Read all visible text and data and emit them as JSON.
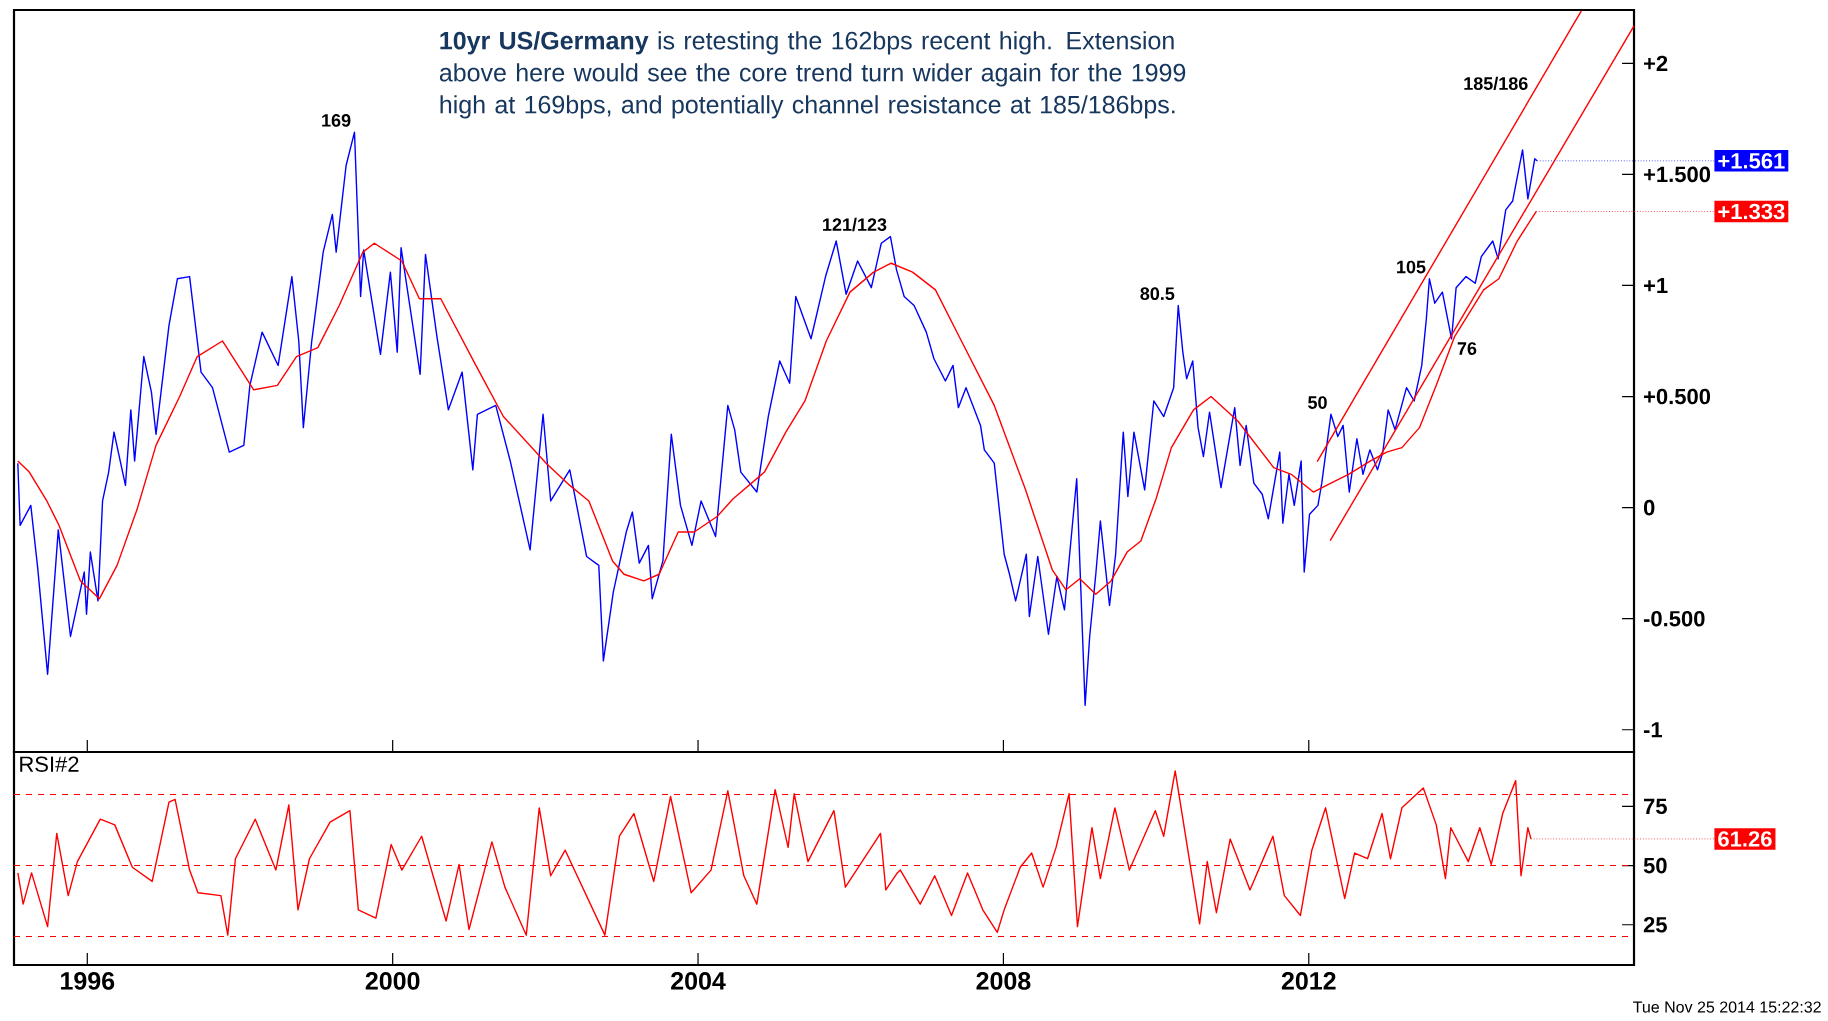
{
  "chart_data": [
    {
      "type": "line",
      "xlim": [
        1995.04,
        2016.26
      ],
      "ylim": [
        -1.1,
        2.24
      ],
      "xticks": [
        1996,
        2000,
        2004,
        2008,
        2012
      ],
      "yticks": [
        {
          "value": 2,
          "label": "+2"
        },
        {
          "value": 1.5,
          "label": "+1.500"
        },
        {
          "value": 1,
          "label": "+1"
        },
        {
          "value": 0.5,
          "label": "+0.500"
        },
        0,
        {
          "value": -0.5,
          "label": "-0.500"
        },
        -1
      ],
      "tick_labels": "y",
      "series": [
        {
          "color": "#0000ff",
          "x": [
            1995.09,
            1995.12,
            1995.26,
            1995.35,
            1995.48,
            1995.62,
            1995.78,
            1995.96,
            1995.99,
            1996.04,
            1996.14,
            1996.2,
            1996.28,
            1996.35,
            1996.5,
            1996.57,
            1996.62,
            1996.74,
            1996.84,
            1996.9,
            1997.07,
            1997.18,
            1997.34,
            1997.49,
            1997.64,
            1997.86,
            1998.05,
            1998.13,
            1998.29,
            1998.5,
            1998.68,
            1998.77,
            1998.83,
            1998.94,
            1999.09,
            1999.21,
            1999.26,
            1999.39,
            1999.5,
            1999.58,
            1999.62,
            1999.84,
            1999.97,
            2000.06,
            2000.11,
            2000.36,
            2000.43,
            2000.58,
            2000.73,
            2000.91,
            2001.05,
            2001.11,
            2001.35,
            2001.54,
            2001.8,
            2001.97,
            2002.07,
            2002.32,
            2002.54,
            2002.7,
            2002.76,
            2002.89,
            2003.06,
            2003.14,
            2003.23,
            2003.35,
            2003.4,
            2003.54,
            2003.65,
            2003.77,
            2003.92,
            2004.04,
            2004.23,
            2004.39,
            2004.48,
            2004.56,
            2004.77,
            2004.92,
            2005.07,
            2005.2,
            2005.28,
            2005.48,
            2005.67,
            2005.81,
            2005.94,
            2006.09,
            2006.27,
            2006.4,
            2006.52,
            2006.6,
            2006.7,
            2006.83,
            2006.99,
            2007.09,
            2007.24,
            2007.34,
            2007.41,
            2007.51,
            2007.7,
            2007.75,
            2007.88,
            2008.01,
            2008.08,
            2008.16,
            2008.3,
            2008.34,
            2008.45,
            2008.59,
            2008.7,
            2008.8,
            2008.96,
            2009.01,
            2009.07,
            2009.13,
            2009.21,
            2009.27,
            2009.39,
            2009.47,
            2009.57,
            2009.63,
            2009.71,
            2009.85,
            2009.97,
            2010.1,
            2010.23,
            2010.29,
            2010.35,
            2010.4,
            2010.48,
            2010.55,
            2010.62,
            2010.7,
            2010.85,
            2011.03,
            2011.1,
            2011.18,
            2011.28,
            2011.39,
            2011.47,
            2011.62,
            2011.66,
            2011.74,
            2011.81,
            2011.9,
            2011.94,
            2012.01,
            2012.12,
            2012.17,
            2012.29,
            2012.38,
            2012.45,
            2012.53,
            2012.63,
            2012.71,
            2012.8,
            2012.9,
            2012.97,
            2013.04,
            2013.13,
            2013.28,
            2013.38,
            2013.48,
            2013.54,
            2013.58,
            2013.65,
            2013.75,
            2013.87,
            2013.93,
            2014.06,
            2014.18,
            2014.26,
            2014.41,
            2014.48,
            2014.58,
            2014.67,
            2014.8,
            2014.87,
            2014.96,
            2014.99
          ],
          "values": [
            0.2,
            -0.08,
            0.01,
            -0.27,
            -0.75,
            -0.1,
            -0.58,
            -0.29,
            -0.48,
            -0.2,
            -0.42,
            0.03,
            0.16,
            0.34,
            0.1,
            0.44,
            0.21,
            0.68,
            0.52,
            0.33,
            0.82,
            1.03,
            1.04,
            0.61,
            0.54,
            0.25,
            0.28,
            0.55,
            0.79,
            0.64,
            1.04,
            0.75,
            0.36,
            0.75,
            1.15,
            1.32,
            1.15,
            1.54,
            1.69,
            0.95,
            1.16,
            0.69,
            1.06,
            0.7,
            1.17,
            0.6,
            1.14,
            0.77,
            0.44,
            0.61,
            0.17,
            0.42,
            0.46,
            0.21,
            -0.19,
            0.42,
            0.03,
            0.17,
            -0.22,
            -0.26,
            -0.69,
            -0.38,
            -0.11,
            -0.02,
            -0.25,
            -0.17,
            -0.41,
            -0.24,
            0.33,
            0.01,
            -0.17,
            0.03,
            -0.13,
            0.46,
            0.35,
            0.16,
            0.07,
            0.41,
            0.66,
            0.56,
            0.95,
            0.76,
            1.04,
            1.2,
            0.96,
            1.11,
            0.99,
            1.19,
            1.22,
            1.07,
            0.95,
            0.91,
            0.79,
            0.67,
            0.57,
            0.64,
            0.45,
            0.54,
            0.37,
            0.26,
            0.2,
            -0.21,
            -0.3,
            -0.42,
            -0.21,
            -0.49,
            -0.22,
            -0.57,
            -0.31,
            -0.46,
            0.13,
            -0.33,
            -0.89,
            -0.58,
            -0.3,
            -0.06,
            -0.44,
            -0.21,
            0.34,
            0.05,
            0.34,
            0.08,
            0.48,
            0.41,
            0.54,
            0.91,
            0.7,
            0.58,
            0.66,
            0.36,
            0.23,
            0.43,
            0.09,
            0.45,
            0.19,
            0.37,
            0.11,
            0.06,
            -0.05,
            0.25,
            -0.07,
            0.15,
            0.01,
            0.21,
            -0.29,
            -0.03,
            0.01,
            0.11,
            0.42,
            0.32,
            0.37,
            0.07,
            0.31,
            0.15,
            0.26,
            0.17,
            0.25,
            0.44,
            0.35,
            0.54,
            0.48,
            0.64,
            0.85,
            1.03,
            0.92,
            0.97,
            0.76,
            0.99,
            1.04,
            1.01,
            1.13,
            1.2,
            1.12,
            1.34,
            1.38,
            1.61,
            1.39,
            1.57,
            1.561
          ]
        },
        {
          "color": "#ff0000",
          "x": [
            1995.09,
            1995.24,
            1995.47,
            1995.63,
            1995.91,
            1996.16,
            1996.39,
            1996.65,
            1996.9,
            1997.21,
            1997.44,
            1997.77,
            1998.18,
            1998.49,
            1998.74,
            1999.02,
            1999.3,
            1999.61,
            1999.76,
            2000.12,
            2000.35,
            2000.63,
            2001.09,
            2001.45,
            2002.01,
            2002.32,
            2002.57,
            2002.88,
            2003.03,
            2003.29,
            2003.49,
            2003.74,
            2003.95,
            2004.25,
            2004.46,
            2004.87,
            2005.15,
            2005.4,
            2005.68,
            2005.99,
            2006.3,
            2006.53,
            2006.81,
            2007.11,
            2007.42,
            2007.88,
            2008.29,
            2008.64,
            2008.82,
            2009.0,
            2009.21,
            2009.41,
            2009.62,
            2009.8,
            2010.0,
            2010.2,
            2010.49,
            2010.72,
            2011.07,
            2011.54,
            2011.77,
            2012.06,
            2012.29,
            2012.52,
            2012.81,
            2013.02,
            2013.22,
            2013.45,
            2013.68,
            2013.91,
            2014.29,
            2014.49,
            2014.73,
            2014.98
          ],
          "values": [
            0.21,
            0.16,
            0.03,
            -0.08,
            -0.33,
            -0.41,
            -0.26,
            -0.01,
            0.28,
            0.5,
            0.68,
            0.75,
            0.53,
            0.55,
            0.68,
            0.72,
            0.91,
            1.15,
            1.19,
            1.11,
            0.94,
            0.94,
            0.64,
            0.41,
            0.2,
            0.1,
            0.03,
            -0.24,
            -0.3,
            -0.33,
            -0.3,
            -0.11,
            -0.11,
            -0.04,
            0.04,
            0.16,
            0.34,
            0.48,
            0.75,
            0.97,
            1.06,
            1.1,
            1.06,
            0.98,
            0.77,
            0.46,
            0.08,
            -0.28,
            -0.37,
            -0.32,
            -0.39,
            -0.33,
            -0.2,
            -0.15,
            0.04,
            0.27,
            0.44,
            0.5,
            0.39,
            0.18,
            0.15,
            0.07,
            0.11,
            0.15,
            0.21,
            0.25,
            0.27,
            0.36,
            0.56,
            0.77,
            0.98,
            1.03,
            1.2,
            1.333
          ]
        },
        {
          "color": "#ff0000",
          "x": [
            2012.11,
            2015.57
          ],
          "values": [
            0.207,
            2.236
          ]
        },
        {
          "color": "#ff0000",
          "x": [
            2012.28,
            2016.26
          ],
          "values": [
            -0.149,
            2.168
          ]
        }
      ],
      "annotations": [
        "**10yr US/Germany** is retesting the 162bps recent high.  Extension above here would see the core trend turn wider again for the 1999 high at 169bps, and potentially channel resistance at 185/186bps.",
        {
          "text": "169",
          "x": 1999.5,
          "y": 1.69
        },
        {
          "text": "121/123",
          "x": 2006.52,
          "y": 1.22
        },
        {
          "text": "80.5",
          "x": 2010.29,
          "y": 0.91
        },
        {
          "text": "50",
          "x": 2012.29,
          "y": 0.42
        },
        {
          "text": "105",
          "x": 2013.58,
          "y": 1.03
        },
        {
          "text": "76",
          "x": 2013.87,
          "y": 0.76
        },
        {
          "text": "185/186",
          "x": 2014.92,
          "y": 1.855
        },
        {
          "text": "+1.561",
          "x": 2014.99,
          "y": 1.561
        },
        {
          "text": "+1.333",
          "x": 2014.98,
          "y": 1.333
        }
      ]
    },
    {
      "type": "line",
      "title": "RSI#2",
      "xlim": [
        1995.04,
        2016.26
      ],
      "ylim": [
        8,
        98
      ],
      "xticks": [
        1996,
        2000,
        2004,
        2008,
        2012
      ],
      "yticks": [
        75,
        50,
        25
      ],
      "series": [
        {
          "color": "#ff0000",
          "x": [
            1995.09,
            1995.16,
            1995.27,
            1995.48,
            1995.6,
            1995.75,
            1995.87,
            1996.17,
            1996.36,
            1996.59,
            1996.85,
            1997.07,
            1997.15,
            1997.34,
            1997.45,
            1997.75,
            1997.84,
            1997.94,
            1998.2,
            1998.47,
            1998.64,
            1998.76,
            1998.91,
            1999.18,
            1999.44,
            1999.55,
            1999.78,
            1999.98,
            2000.12,
            2000.38,
            2000.7,
            2000.87,
            2001.0,
            2001.3,
            2001.47,
            2001.75,
            2001.92,
            2002.07,
            2002.26,
            2002.78,
            2002.97,
            2003.16,
            2003.42,
            2003.64,
            2003.91,
            2004.17,
            2004.39,
            2004.6,
            2004.77,
            2005.01,
            2005.18,
            2005.26,
            2005.44,
            2005.78,
            2005.93,
            2006.39,
            2006.46,
            2006.61,
            2006.65,
            2006.91,
            2007.1,
            2007.32,
            2007.53,
            2007.73,
            2007.92,
            2008.01,
            2008.22,
            2008.37,
            2008.52,
            2008.69,
            2008.86,
            2008.97,
            2009.16,
            2009.27,
            2009.46,
            2009.65,
            2009.99,
            2010.1,
            2010.25,
            2010.44,
            2010.57,
            2010.67,
            2010.79,
            2010.97,
            2011.23,
            2011.53,
            2011.68,
            2011.89,
            2012.04,
            2012.22,
            2012.47,
            2012.6,
            2012.77,
            2012.96,
            2013.07,
            2013.22,
            2013.5,
            2013.67,
            2013.79,
            2013.86,
            2014.09,
            2014.24,
            2014.39,
            2014.54,
            2014.71,
            2014.78,
            2014.87,
            2014.91
          ],
          "values": [
            46.9,
            33.7,
            46.9,
            24.2,
            63.6,
            37.3,
            51.7,
            69.6,
            67.2,
            49.3,
            43.3,
            76.8,
            78.0,
            48.1,
            38.5,
            37.3,
            20.6,
            52.9,
            69.6,
            48.1,
            75.6,
            31.3,
            52.9,
            68.4,
            73.2,
            31.3,
            27.8,
            58.9,
            48.1,
            62.4,
            26.6,
            50.5,
            23.0,
            60.0,
            40.9,
            20.6,
            74.4,
            45.7,
            56.5,
            20.6,
            62.4,
            72.0,
            43.3,
            79.2,
            38.5,
            48.1,
            81.6,
            45.7,
            33.7,
            82.1,
            57.7,
            80.4,
            51.7,
            73.2,
            40.9,
            63.6,
            39.7,
            46.9,
            48.1,
            33.7,
            45.7,
            28.9,
            46.9,
            31.3,
            21.8,
            31.3,
            49.3,
            55.3,
            40.9,
            57.7,
            80.4,
            24.2,
            66.0,
            44.5,
            74.4,
            48.1,
            73.2,
            62.4,
            90.0,
            51.7,
            25.4,
            51.7,
            30.1,
            61.2,
            39.7,
            62.4,
            37.3,
            28.9,
            56.5,
            74.4,
            36.1,
            55.3,
            52.9,
            72.0,
            52.9,
            74.4,
            82.8,
            67.2,
            44.5,
            66.0,
            51.7,
            66.0,
            50.5,
            72.0,
            85.9,
            45.7,
            66.0,
            61.26
          ]
        }
      ],
      "ref_lines": [
        {
          "axis": "y",
          "value": 80,
          "color": "#ff0000",
          "line_style": "dashed"
        },
        {
          "axis": "y",
          "value": 50,
          "color": "#ff0000",
          "line_style": "dashed"
        },
        {
          "axis": "y",
          "value": 20,
          "color": "#ff0000",
          "line_style": "dashed"
        }
      ],
      "annotations": [
        {
          "text": "61.26",
          "x": 2014.91,
          "y": 61.26
        },
        "Tue Nov 25 2014 15:22:32"
      ]
    }
  ]
}
